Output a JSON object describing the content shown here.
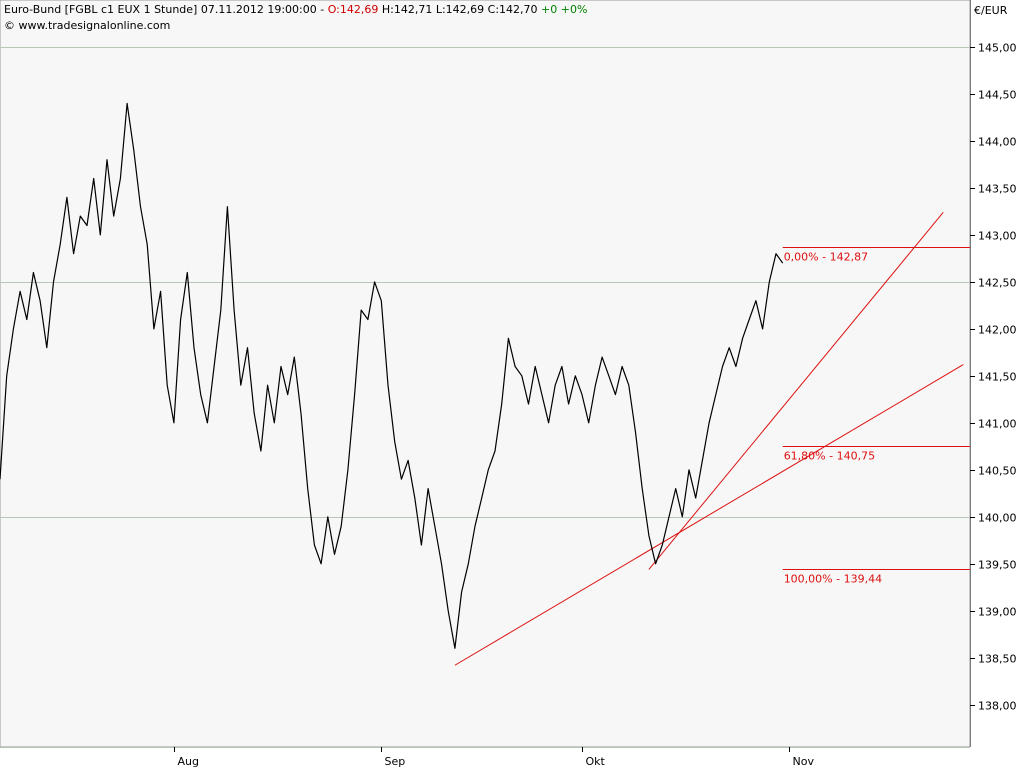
{
  "header": {
    "instrument": "Euro-Bund [FGBL c1 EUX  1 Stunde] 07.11.2012 19:00:00 - ",
    "open": "O:142,69",
    "hlc": " H:142,71 L:142,69 C:142,70 ",
    "change": "+0 +0%",
    "source": "© www.tradesignalonline.com"
  },
  "colors": {
    "background": "#ffffff",
    "plot": "#f7f7f7",
    "price": "#000000",
    "trend": "#dd1111",
    "gridline": "#b8c6b8",
    "up": "#008000",
    "down": "#cc0000"
  },
  "chart_data": {
    "type": "line",
    "currency_label": "€/EUR",
    "y_ticks": [
      "145,00",
      "144,50",
      "144,00",
      "143,50",
      "143,00",
      "142,50",
      "142,00",
      "141,50",
      "141,00",
      "140,50",
      "140,00",
      "139,50",
      "139,00",
      "138,50",
      "138,00"
    ],
    "y_tick_values": [
      145.0,
      144.5,
      144.0,
      143.5,
      143.0,
      142.5,
      142.0,
      141.5,
      141.0,
      140.5,
      140.0,
      139.5,
      139.0,
      138.5,
      138.0
    ],
    "ylim": [
      137.55,
      145.5
    ],
    "x_ticks": [
      "Aug",
      "Sep",
      "Okt",
      "Nov"
    ],
    "x_tick_dates": [
      "2012-08-01",
      "2012-09-01",
      "2012-10-01",
      "2012-11-01"
    ],
    "xlim": [
      "2012-07-06",
      "2012-11-28"
    ],
    "gridlines_y": [
      145.0,
      142.5,
      140.0,
      137.55
    ],
    "series": [
      {
        "points": [
          [
            "2012-07-06",
            140.4
          ],
          [
            "2012-07-07",
            141.5
          ],
          [
            "2012-07-08",
            142.0
          ],
          [
            "2012-07-09",
            142.4
          ],
          [
            "2012-07-10",
            142.1
          ],
          [
            "2012-07-11",
            142.6
          ],
          [
            "2012-07-12",
            142.3
          ],
          [
            "2012-07-13",
            141.8
          ],
          [
            "2012-07-14",
            142.5
          ],
          [
            "2012-07-15",
            142.9
          ],
          [
            "2012-07-16",
            143.4
          ],
          [
            "2012-07-17",
            142.8
          ],
          [
            "2012-07-18",
            143.2
          ],
          [
            "2012-07-19",
            143.1
          ],
          [
            "2012-07-20",
            143.6
          ],
          [
            "2012-07-21",
            143.0
          ],
          [
            "2012-07-22",
            143.8
          ],
          [
            "2012-07-23",
            143.2
          ],
          [
            "2012-07-24",
            143.6
          ],
          [
            "2012-07-25",
            144.4
          ],
          [
            "2012-07-26",
            143.9
          ],
          [
            "2012-07-27",
            143.3
          ],
          [
            "2012-07-28",
            142.9
          ],
          [
            "2012-07-29",
            142.0
          ],
          [
            "2012-07-30",
            142.4
          ],
          [
            "2012-07-31",
            141.4
          ],
          [
            "2012-08-01",
            141.0
          ],
          [
            "2012-08-02",
            142.1
          ],
          [
            "2012-08-03",
            142.6
          ],
          [
            "2012-08-04",
            141.8
          ],
          [
            "2012-08-05",
            141.3
          ],
          [
            "2012-08-06",
            141.0
          ],
          [
            "2012-08-07",
            141.6
          ],
          [
            "2012-08-08",
            142.2
          ],
          [
            "2012-08-09",
            143.3
          ],
          [
            "2012-08-10",
            142.2
          ],
          [
            "2012-08-11",
            141.4
          ],
          [
            "2012-08-12",
            141.8
          ],
          [
            "2012-08-13",
            141.1
          ],
          [
            "2012-08-14",
            140.7
          ],
          [
            "2012-08-15",
            141.4
          ],
          [
            "2012-08-16",
            141.0
          ],
          [
            "2012-08-17",
            141.6
          ],
          [
            "2012-08-18",
            141.3
          ],
          [
            "2012-08-19",
            141.7
          ],
          [
            "2012-08-20",
            141.1
          ],
          [
            "2012-08-21",
            140.3
          ],
          [
            "2012-08-22",
            139.7
          ],
          [
            "2012-08-23",
            139.5
          ],
          [
            "2012-08-24",
            140.0
          ],
          [
            "2012-08-25",
            139.6
          ],
          [
            "2012-08-26",
            139.9
          ],
          [
            "2012-08-27",
            140.5
          ],
          [
            "2012-08-28",
            141.3
          ],
          [
            "2012-08-29",
            142.2
          ],
          [
            "2012-08-30",
            142.1
          ],
          [
            "2012-08-31",
            142.5
          ],
          [
            "2012-09-01",
            142.3
          ],
          [
            "2012-09-02",
            141.4
          ],
          [
            "2012-09-03",
            140.8
          ],
          [
            "2012-09-04",
            140.4
          ],
          [
            "2012-09-05",
            140.6
          ],
          [
            "2012-09-06",
            140.2
          ],
          [
            "2012-09-07",
            139.7
          ],
          [
            "2012-09-08",
            140.3
          ],
          [
            "2012-09-09",
            139.9
          ],
          [
            "2012-09-10",
            139.5
          ],
          [
            "2012-09-11",
            139.0
          ],
          [
            "2012-09-12",
            138.6
          ],
          [
            "2012-09-13",
            139.2
          ],
          [
            "2012-09-14",
            139.5
          ],
          [
            "2012-09-15",
            139.9
          ],
          [
            "2012-09-16",
            140.2
          ],
          [
            "2012-09-17",
            140.5
          ],
          [
            "2012-09-18",
            140.7
          ],
          [
            "2012-09-19",
            141.2
          ],
          [
            "2012-09-20",
            141.9
          ],
          [
            "2012-09-21",
            141.6
          ],
          [
            "2012-09-22",
            141.5
          ],
          [
            "2012-09-23",
            141.2
          ],
          [
            "2012-09-24",
            141.6
          ],
          [
            "2012-09-25",
            141.3
          ],
          [
            "2012-09-26",
            141.0
          ],
          [
            "2012-09-27",
            141.4
          ],
          [
            "2012-09-28",
            141.6
          ],
          [
            "2012-09-29",
            141.2
          ],
          [
            "2012-09-30",
            141.5
          ],
          [
            "2012-10-01",
            141.3
          ],
          [
            "2012-10-02",
            141.0
          ],
          [
            "2012-10-03",
            141.4
          ],
          [
            "2012-10-04",
            141.7
          ],
          [
            "2012-10-05",
            141.5
          ],
          [
            "2012-10-06",
            141.3
          ],
          [
            "2012-10-07",
            141.6
          ],
          [
            "2012-10-08",
            141.4
          ],
          [
            "2012-10-09",
            140.9
          ],
          [
            "2012-10-10",
            140.3
          ],
          [
            "2012-10-11",
            139.8
          ],
          [
            "2012-10-12",
            139.5
          ],
          [
            "2012-10-13",
            139.7
          ],
          [
            "2012-10-14",
            140.0
          ],
          [
            "2012-10-15",
            140.3
          ],
          [
            "2012-10-16",
            140.0
          ],
          [
            "2012-10-17",
            140.5
          ],
          [
            "2012-10-18",
            140.2
          ],
          [
            "2012-10-19",
            140.6
          ],
          [
            "2012-10-20",
            141.0
          ],
          [
            "2012-10-21",
            141.3
          ],
          [
            "2012-10-22",
            141.6
          ],
          [
            "2012-10-23",
            141.8
          ],
          [
            "2012-10-24",
            141.6
          ],
          [
            "2012-10-25",
            141.9
          ],
          [
            "2012-10-26",
            142.1
          ],
          [
            "2012-10-27",
            142.3
          ],
          [
            "2012-10-28",
            142.0
          ],
          [
            "2012-10-29",
            142.5
          ],
          [
            "2012-10-30",
            142.8
          ],
          [
            "2012-10-31",
            142.7
          ]
        ]
      }
    ],
    "fibonacci": [
      {
        "label": "0,00% - 142,87",
        "value": 142.87
      },
      {
        "label": "61,80% - 140,75",
        "value": 140.75
      },
      {
        "label": "100,00% - 139,44",
        "value": 139.44
      }
    ],
    "fib_start": "2012-10-31",
    "trendlines": [
      {
        "from": [
          "2012-09-12",
          138.42
        ],
        "to": [
          "2012-11-27",
          141.62
        ]
      },
      {
        "from": [
          "2012-10-11",
          139.44
        ],
        "to": [
          "2012-11-24",
          143.24
        ]
      }
    ]
  }
}
